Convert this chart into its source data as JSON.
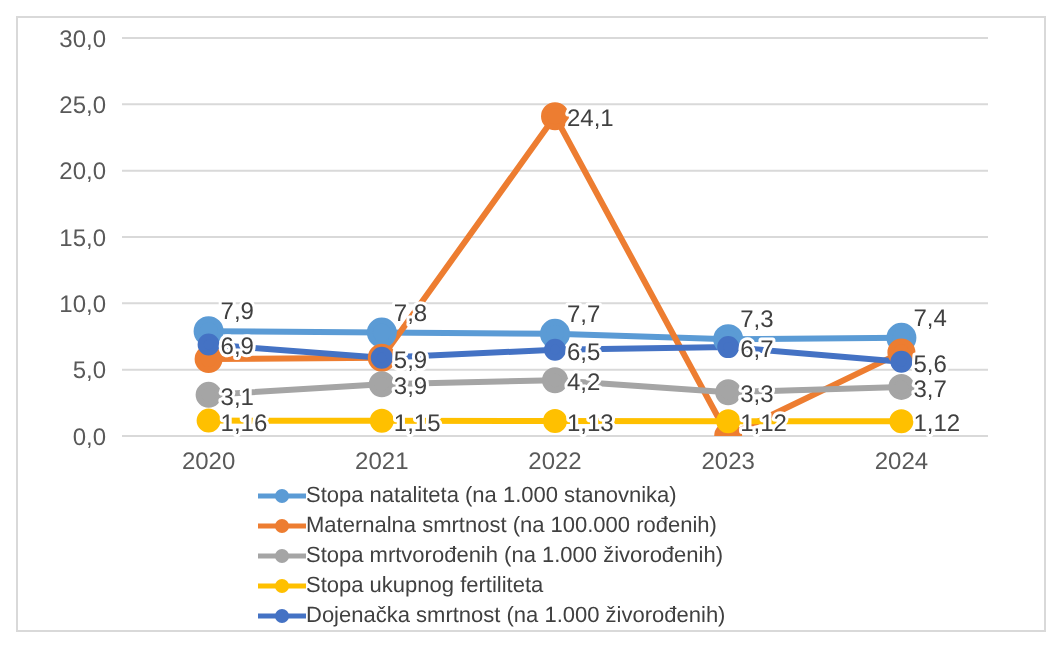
{
  "chart_data": {
    "type": "line",
    "categories": [
      "2020",
      "2021",
      "2022",
      "2023",
      "2024"
    ],
    "ylim": [
      0,
      30
    ],
    "yticks": [
      {
        "value": 0,
        "label": "0,0"
      },
      {
        "value": 5,
        "label": "5,0"
      },
      {
        "value": 10,
        "label": "10,0"
      },
      {
        "value": 15,
        "label": "15,0"
      },
      {
        "value": 20,
        "label": "20,0"
      },
      {
        "value": 25,
        "label": "25,0"
      },
      {
        "value": 30,
        "label": "30,0"
      }
    ],
    "grid": "y",
    "legend": "bottom",
    "marker": "circle",
    "line_style": "solid",
    "series": [
      {
        "name": "Stopa nataliteta (na 1.000 stanovnika)",
        "color": "#5b9bd5",
        "values": [
          7.9,
          7.8,
          7.7,
          7.3,
          7.4
        ],
        "value_labels": [
          "7,9",
          "7,8",
          "7,7",
          "7,3",
          "7,4"
        ]
      },
      {
        "name": "Maternalna smrtnost (na 100.000 rođenih)",
        "color": "#ed7d31",
        "values": [
          5.8,
          5.9,
          24.1,
          0,
          6.3
        ],
        "value_labels": [
          null,
          null,
          "24,1",
          null,
          null
        ]
      },
      {
        "name": "Stopa mrtvorođenih (na 1.000 živorođenih)",
        "color": "#a5a5a5",
        "values": [
          3.1,
          3.9,
          4.2,
          3.3,
          3.7
        ],
        "value_labels": [
          "3,1",
          "3,9",
          "4,2",
          "3,3",
          "3,7"
        ]
      },
      {
        "name": "Stopa ukupnog fertiliteta",
        "color": "#ffc000",
        "values": [
          1.16,
          1.15,
          1.13,
          1.12,
          1.12
        ],
        "value_labels": [
          "1,16",
          "1,15",
          "1,13",
          "1,12",
          "1,12"
        ]
      },
      {
        "name": "Dojenačka smrtnost (na 1.000 živorođenih)",
        "color": "#4472c4",
        "values": [
          6.9,
          5.9,
          6.5,
          6.7,
          5.6
        ],
        "value_labels": [
          "6,9",
          "5,9",
          "6,5",
          "6,7",
          "5,6"
        ]
      }
    ]
  }
}
